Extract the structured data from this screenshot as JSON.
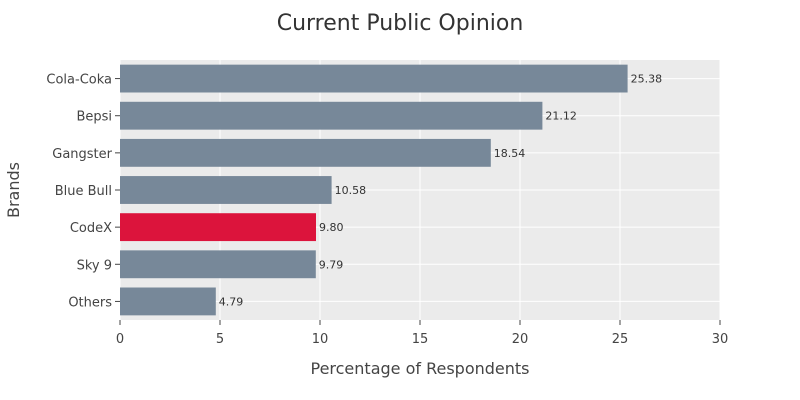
{
  "chart_data": {
    "type": "bar",
    "orientation": "horizontal",
    "title": "Current Public Opinion",
    "xlabel": "Percentage of Respondents",
    "ylabel": "Brands",
    "categories": [
      "Cola-Coka",
      "Bepsi",
      "Gangster",
      "Blue Bull",
      "CodeX",
      "Sky 9",
      "Others"
    ],
    "values": [
      25.38,
      21.12,
      18.54,
      10.58,
      9.8,
      9.79,
      4.79
    ],
    "value_labels": [
      "25.38",
      "21.12",
      "18.54",
      "10.58",
      "9.80",
      "9.79",
      "4.79"
    ],
    "xlim": [
      0,
      30
    ],
    "x_ticks": [
      "0",
      "5",
      "10",
      "15",
      "20",
      "25",
      "30"
    ],
    "grid": true,
    "bar_color": "#778899",
    "highlight_category": "CodeX",
    "highlight_color": "#dc143c",
    "plot_background": "#ebebeb"
  }
}
